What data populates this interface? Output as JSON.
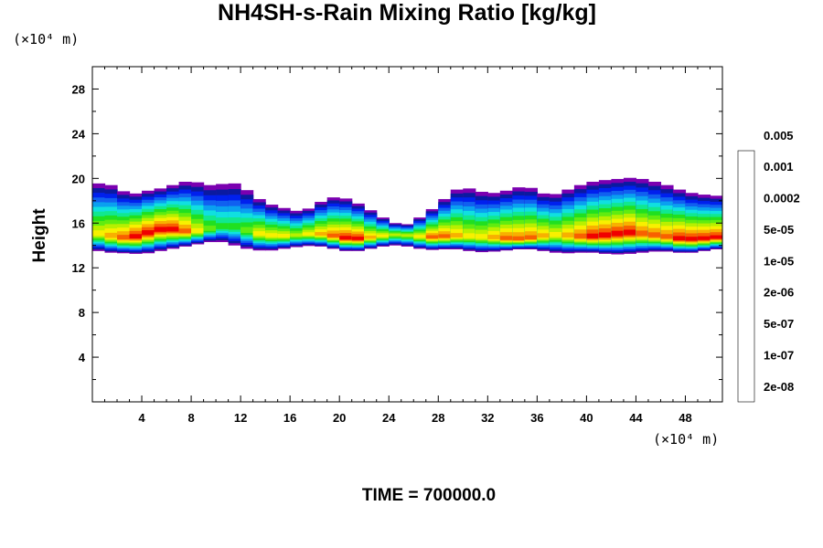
{
  "chart_data": {
    "type": "heatmap",
    "title": "NH4SH-s-Rain Mixing Ratio [kg/kg]",
    "ylabel": "Height",
    "x_unit": "(×10⁴ m)",
    "y_unit": "(×10⁴ m)",
    "footer": "TIME = 700000.0",
    "xlim": [
      0,
      51
    ],
    "ylim": [
      0,
      30
    ],
    "x_ticks": [
      4,
      8,
      12,
      16,
      20,
      24,
      28,
      32,
      36,
      40,
      44,
      48
    ],
    "y_ticks": [
      4,
      8,
      12,
      16,
      20,
      24,
      28
    ],
    "colorbar": {
      "levels": [
        "2e-08",
        "1e-07",
        "5e-07",
        "2e-06",
        "1e-05",
        "5e-05",
        "0.0002",
        "0.001",
        "0.005"
      ],
      "colors": [
        "#7a00b0",
        "#0a1aa0",
        "#0020ee",
        "#1060f0",
        "#0aa0f0",
        "#10e0e0",
        "#10e890",
        "#20e020",
        "#60ec10",
        "#b8f000",
        "#f8f000",
        "#f8b000",
        "#f86000",
        "#f00000",
        "#f85050",
        "#f8a0a0"
      ]
    },
    "field": {
      "description_band": "cloud layer between ~13 and ~20",
      "top_height": [
        19.5,
        19.6,
        19.2,
        18.5,
        18.8,
        19.0,
        19.2,
        19.6,
        19.8,
        19.5,
        19.3,
        19.7,
        19.4,
        18.5,
        17.8,
        17.5,
        17.2,
        17.0,
        17.6,
        18.2,
        18.4,
        18.0,
        17.5,
        16.8,
        16.2,
        15.8,
        16.0,
        17.0,
        17.5,
        18.8,
        19.2,
        19.0,
        18.6,
        18.8,
        19.0,
        19.4,
        18.9,
        18.4,
        18.8,
        19.2,
        19.6,
        19.8,
        19.9,
        20.0,
        20.1,
        19.8,
        19.6,
        19.2,
        18.8,
        18.6,
        18.5,
        18.4
      ],
      "bottom_height": [
        13.6,
        13.4,
        13.3,
        13.3,
        13.2,
        13.4,
        13.6,
        13.8,
        14.0,
        14.2,
        14.4,
        14.2,
        13.8,
        13.6,
        13.5,
        13.6,
        13.8,
        13.9,
        14.0,
        13.8,
        13.6,
        13.4,
        13.6,
        13.8,
        14.0,
        14.0,
        13.8,
        13.6,
        13.6,
        13.7,
        13.6,
        13.4,
        13.4,
        13.5,
        13.6,
        13.7,
        13.6,
        13.4,
        13.3,
        13.3,
        13.4,
        13.3,
        13.2,
        13.2,
        13.3,
        13.4,
        13.5,
        13.4,
        13.3,
        13.4,
        13.6,
        13.7
      ],
      "peak_level": [
        9,
        10,
        11,
        12,
        13,
        13,
        13,
        12,
        11,
        9,
        7,
        6,
        7,
        9,
        10,
        10,
        9,
        9,
        10,
        11,
        12,
        13,
        12,
        10,
        9,
        8,
        9,
        11,
        12,
        11,
        10,
        9,
        10,
        11,
        12,
        12,
        11,
        10,
        10,
        11,
        12,
        13,
        13,
        13,
        12,
        12,
        11,
        12,
        13,
        13,
        13,
        12
      ],
      "core_height": [
        15.2,
        15.0,
        14.8,
        14.7,
        15.0,
        15.4,
        15.6,
        15.4,
        15.2,
        15.4,
        15.6,
        15.8,
        15.6,
        15.2,
        15.0,
        14.9,
        14.9,
        15.0,
        15.1,
        15.0,
        14.8,
        14.6,
        14.7,
        14.8,
        15.0,
        15.0,
        14.9,
        14.8,
        14.8,
        14.9,
        14.9,
        14.8,
        14.8,
        14.7,
        14.6,
        14.6,
        14.8,
        15.0,
        15.0,
        14.9,
        14.8,
        14.9,
        15.0,
        15.2,
        15.2,
        15.0,
        14.9,
        14.7,
        14.6,
        14.6,
        14.7,
        14.8
      ]
    }
  }
}
